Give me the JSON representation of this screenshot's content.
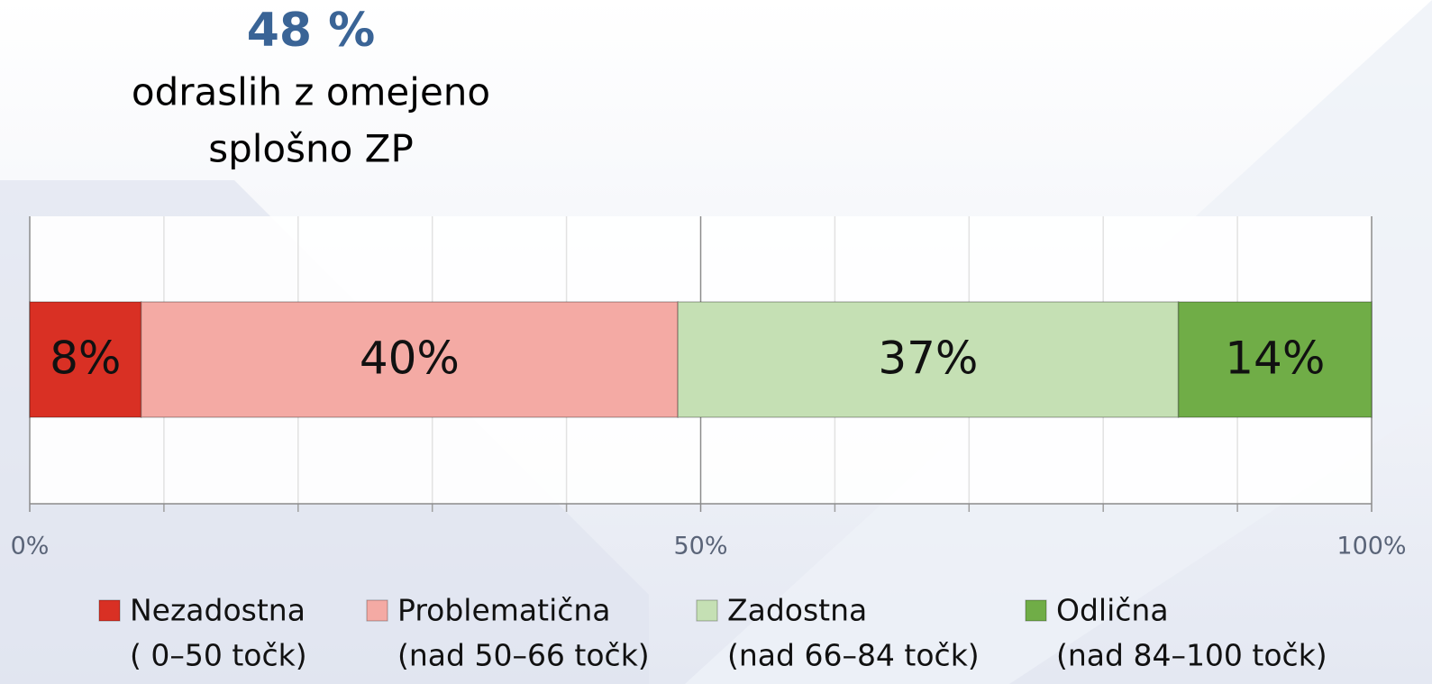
{
  "chart_data": {
    "type": "stacked-bar-horizontal",
    "annotation": "48 %",
    "subtitle_lines": [
      "odraslih z omejeno",
      "splošno ZP"
    ],
    "series": [
      {
        "name": "Nezadostna",
        "range": "( 0–50 točk)",
        "color": "#d93024",
        "value": 8.3,
        "value_label": "8%"
      },
      {
        "name": "Problematična",
        "range": "(nad 50–66 točk)",
        "color": "#f4aaa4",
        "value": 40,
        "value_label": "40%"
      },
      {
        "name": "Zadostna",
        "range": "(nad 66–84 točk)",
        "color": "#c5e0b4",
        "value": 37.3,
        "value_label": "37%"
      },
      {
        "name": "Odlična",
        "range": "(nad 84–100 točk)",
        "color": "#70ad47",
        "value": 14.4,
        "value_label": "14%"
      }
    ],
    "xlim": [
      0,
      100
    ],
    "xticks": [
      {
        "value": 0,
        "label": "0%"
      },
      {
        "value": 50,
        "label": "50%"
      },
      {
        "value": 100,
        "label": "100%"
      }
    ],
    "minor_xticks": [
      10,
      20,
      30,
      40,
      60,
      70,
      80,
      90
    ],
    "grid": true,
    "legend": "bottom"
  }
}
